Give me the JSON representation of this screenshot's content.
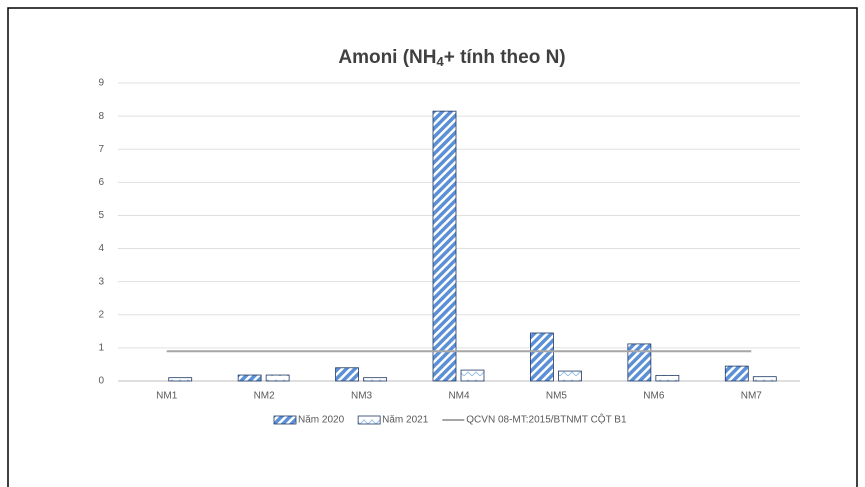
{
  "chart_data": {
    "type": "bar",
    "title": [
      "Amoni (NH",
      "4",
      "+ tính theo N)"
    ],
    "categories": [
      "NM1",
      "NM2",
      "NM3",
      "NM4",
      "NM5",
      "NM6",
      "NM7"
    ],
    "series": [
      {
        "name": "Năm 2020",
        "color": "#5b8fd6",
        "values": [
          0,
          0.18,
          0.4,
          8.15,
          1.45,
          1.12,
          0.45
        ]
      },
      {
        "name": "Năm 2021",
        "color": "#9dc3e6",
        "values": [
          0.1,
          0.18,
          0.1,
          0.33,
          0.3,
          0.17,
          0.13
        ]
      },
      {
        "name": "QCVN 08-MT:2015/BTNMT CỘT B1",
        "type": "line",
        "color": "#a6a6a6",
        "values": [
          0.9,
          0.9,
          0.9,
          0.9,
          0.9,
          0.9,
          0.9
        ]
      }
    ],
    "ylim": [
      0,
      9
    ],
    "yticks": [
      0,
      1,
      2,
      3,
      4,
      5,
      6,
      7,
      8,
      9
    ],
    "grid": true,
    "legend": "bottom"
  }
}
